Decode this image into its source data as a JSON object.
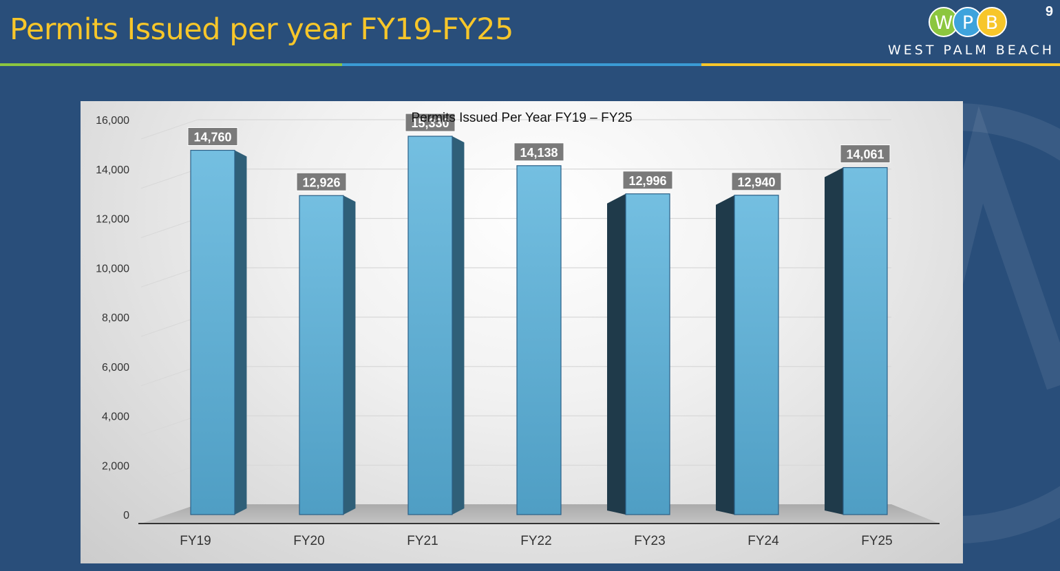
{
  "slide": {
    "title": "Permits Issued per year FY19-FY25",
    "number": "9",
    "logo_letters": [
      "W",
      "P",
      "B"
    ],
    "logo_tagline": "WEST PALM BEACH"
  },
  "colors": {
    "background": "#294e7a",
    "title": "#f7c62a",
    "rule_green": "#8cc63f",
    "rule_blue": "#3a9bd5",
    "rule_yellow": "#f7c62a",
    "logo_green": "#8cc63f",
    "logo_blue": "#3ea3dc",
    "logo_yellow": "#f7c62a",
    "bar_front_top": "#74bfe1",
    "bar_front_bottom": "#4f9ec4",
    "bar_side": "#2f5f78",
    "bar_side_dark": "#1f3a4a",
    "label_box": "#7a7a7a"
  },
  "chart_data": {
    "type": "bar",
    "title": "Permits Issued Per Year FY19 – FY25",
    "categories": [
      "FY19",
      "FY20",
      "FY21",
      "FY22",
      "FY23",
      "FY24",
      "FY25"
    ],
    "values": [
      14760,
      12926,
      15330,
      14138,
      12996,
      12940,
      14061
    ],
    "value_labels": [
      "14,760",
      "12,926",
      "15,330",
      "14,138",
      "12,996",
      "12,940",
      "14,061"
    ],
    "y_ticks": [
      0,
      2000,
      4000,
      6000,
      8000,
      10000,
      12000,
      14000,
      16000
    ],
    "y_tick_labels": [
      "0",
      "2,000",
      "4,000",
      "6,000",
      "8,000",
      "10,000",
      "12,000",
      "14,000",
      "16,000"
    ],
    "ylim": [
      0,
      16000
    ],
    "xlabel": "",
    "ylabel": "",
    "grid": true,
    "legend": "none"
  }
}
